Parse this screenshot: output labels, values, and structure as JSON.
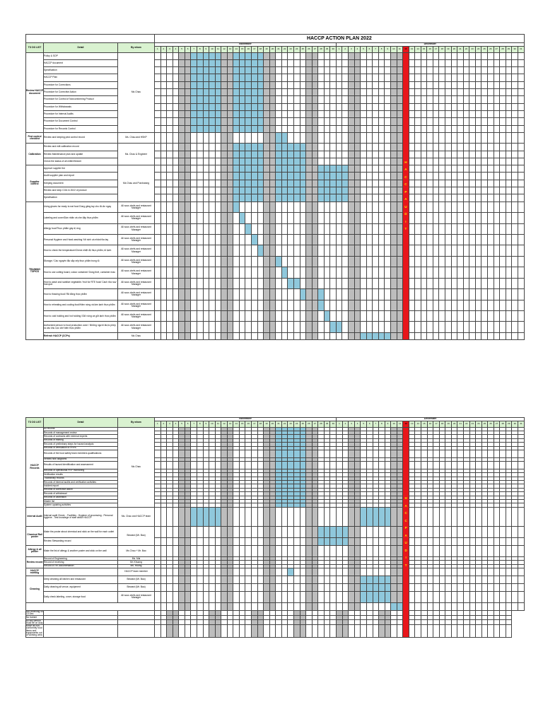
{
  "title": "HACCP ACTION PLAN 2022",
  "headers": {
    "group": "TO DO LIST",
    "detail": "Detail",
    "by_whom": "By whom"
  },
  "months": {
    "november": "November",
    "december": "December"
  },
  "days_nov": [
    1,
    2,
    3,
    4,
    5,
    6,
    7,
    8,
    9,
    10,
    11,
    12,
    13,
    14,
    15,
    16,
    17,
    18,
    19,
    20,
    21,
    22,
    23,
    24,
    25,
    26,
    27,
    28,
    29,
    30
  ],
  "days_dec": [
    1,
    2,
    3,
    4,
    5,
    6,
    7,
    8,
    9,
    10,
    11,
    12,
    13,
    14,
    15,
    16,
    17,
    18,
    19,
    20,
    21,
    22,
    23,
    24,
    25,
    26,
    27,
    28,
    29,
    30,
    31
  ],
  "weekend_days_nov": [
    5,
    6,
    12,
    13,
    19,
    20,
    26,
    27
  ],
  "weekend_days_dec": [
    3,
    4,
    10,
    11
  ],
  "audit_day_dec": 12,
  "audit_text": "HACCP AUDIT",
  "colors": {
    "header_green": "#d9f2d0",
    "weekend_grey": "#bdbdbd",
    "task_blue": "#8fc8dc",
    "audit_red": "#e8161b",
    "audit_text_yellow": "#ffe600"
  },
  "sheet1": {
    "rows": [
      {
        "group": "Review HACCP document",
        "detail": "Policy & SOP",
        "who": "Ms Chau",
        "h": 2
      },
      {
        "group": "",
        "detail": "HACCP document",
        "who": "",
        "h": 2
      },
      {
        "group": "",
        "detail": "Specification",
        "who": "",
        "h": 2
      },
      {
        "group": "",
        "detail": "HACCP Plan",
        "who": "",
        "h": 2
      },
      {
        "group": "",
        "detail": "Procedure for Corrections",
        "who": "",
        "h": 2
      },
      {
        "group": "",
        "detail": "Procedure for Corrective Action",
        "who": "",
        "h": 2
      },
      {
        "group": "",
        "detail": "Procedure for Control of Nonconforming Product",
        "who": "",
        "h": 2
      },
      {
        "group": "",
        "detail": "Procedure for Withdrawals",
        "who": "",
        "h": 2
      },
      {
        "group": "",
        "detail": "Procedure for Internal Audits",
        "who": "",
        "h": 2
      },
      {
        "group": "",
        "detail": "Procedure for Document Control",
        "who": "",
        "h": 2
      },
      {
        "group": "",
        "detail": "Procedure for Records Control",
        "who": "",
        "h": 2
      },
      {
        "group": "Pest control checklist",
        "detail": "Review and keeping pest control record",
        "who": "Ms. Chau and HSKP",
        "h": 3
      },
      {
        "group": "Calibration",
        "detail": "Review and edit calibration record",
        "who": "Ms. Chau & Engineer",
        "h": 2
      },
      {
        "group": "",
        "detail": "Review Maintenance plan and update",
        "who": "",
        "h": 2
      },
      {
        "group": "",
        "detail": "Check the status of all chiller/freezer",
        "who": "",
        "h": 2
      },
      {
        "group": "Supplier control",
        "detail": "Approve supplier list",
        "who": "Ms Chau and Purchasing",
        "h": 2
      },
      {
        "group": "",
        "detail": "Audit supplier plan and report",
        "who": "",
        "h": 2
      },
      {
        "group": "",
        "detail": "Keeping document",
        "who": "",
        "h": 2
      },
      {
        "group": "",
        "detail": "Review and keep COA in 2022 of product",
        "who": "",
        "h": 2
      },
      {
        "group": "",
        "detail": "Specification",
        "who": "",
        "h": 2
      },
      {
        "group": "TRAINING TOPICS",
        "detail": "Using gloves for ready to eat food Dùng găng tay cho đồ ăn ngay",
        "who": "All sous chefs and restaurant Manager",
        "h": 3
      },
      {
        "group": "",
        "detail": "Labeling and cover/Dán nhãn và che đậy thực phẩm",
        "who": "All sous chefs and restaurant Manager",
        "h": 3
      },
      {
        "group": "",
        "detail": "Allergy food/Thực phẩm gây dị ứng",
        "who": "All sous chefs and restaurant Manager",
        "h": 3
      },
      {
        "group": "",
        "detail": "Personal Hygiene and Hand washing /Vệ sinh cá nhân/rửa tay",
        "who": "All sous chefs and restaurant Manager",
        "h": 3
      },
      {
        "group": "",
        "detail": "How to check the temperature/Check nhiệt độ thực phẩm, tủ lạnh",
        "who": "All sous chefs and restaurant Manager",
        "h": 3
      },
      {
        "group": "",
        "detail": "Storage / Các nguyên tắc sắp xếp thực phẩm trong tủ",
        "who": "All sous chefs and restaurant Manager",
        "h": 3
      },
      {
        "group": "",
        "detail": "How to use cutting board, colour container/ Dùng thớt, container màu",
        "who": "All sous chefs and restaurant Manager",
        "h": 3
      },
      {
        "group": "",
        "detail": "How to wash and sanitize vegetable / fruit for RTE food/ Cách rửa rau/ hoa quả",
        "who": "All sous chefs and restaurant Manager",
        "h": 3
      },
      {
        "group": "",
        "detail": "How to thawing food/ Rã đông thực phẩm",
        "who": "All sous chefs and restaurant Manager",
        "h": 3
      },
      {
        "group": "",
        "detail": "How to reheating and cooling food/Hâm nóng và làm lạnh thực phẩm",
        "who": "All sous chefs and restaurant Manager",
        "h": 3
      },
      {
        "group": "",
        "detail": "How to cold holding and hot holding /Giữ nóng và giữ lạnh thực phẩm",
        "who": "All sous chefs and restaurant Manager",
        "h": 3
      },
      {
        "group": "",
        "detail": "Authorized person to food production zone / Những người được phép ra vào khu vực chế biến thực phẩm",
        "who": "All sous chefs and restaurant Manager",
        "h": 3
      },
      {
        "group": "",
        "detail": "Refresh HACCP (CCPs)",
        "who": "Ms Chau",
        "h": 2,
        "bold": true
      }
    ]
  },
  "sheet2": {
    "rows": [
      {
        "group": "HACCP Records",
        "detail": "All records",
        "who": "Ms Chau",
        "h": 1
      },
      {
        "group": "",
        "detail": "Records of management review",
        "who": "",
        "h": 1
      },
      {
        "group": "",
        "detail": "Records of contracts with external experts",
        "who": "",
        "h": 1
      },
      {
        "group": "",
        "detail": "Records of training",
        "who": "",
        "h": 1
      },
      {
        "group": "",
        "detail": "Records of preliminary steps for hazard analysis",
        "who": "",
        "h": 1
      },
      {
        "group": "",
        "detail": "Records of verification of PRPs",
        "who": "",
        "h": 1
      },
      {
        "group": "",
        "detail": "Records of the food safety team members qualifications",
        "who": "",
        "h": 2
      },
      {
        "group": "",
        "detail": "Verified flow diagrams",
        "who": "",
        "h": 1
      },
      {
        "group": "",
        "detail": "Results of hazard identification and assessment",
        "who": "",
        "h": 2
      },
      {
        "group": "",
        "detail": "Records of operational PRP monitoring",
        "who": "",
        "h": 1
      },
      {
        "group": "",
        "detail": "Verification results",
        "who": "",
        "h": 1
      },
      {
        "group": "",
        "detail": "Traceability records",
        "who": "",
        "h": 1
      },
      {
        "group": "",
        "detail": "Records of internal audits and verification activities",
        "who": "",
        "h": 1
      },
      {
        "group": "",
        "detail": "Incident report",
        "who": "",
        "h": 1
      },
      {
        "group": "",
        "detail": "Records of corrective action",
        "who": "",
        "h": 1
      },
      {
        "group": "",
        "detail": "Records of withdrawal",
        "who": "",
        "h": 1
      },
      {
        "group": "",
        "detail": "Records of calibration",
        "who": "",
        "h": 1
      },
      {
        "group": "",
        "detail": "Master list",
        "who": "",
        "h": 1
      },
      {
        "group": "",
        "detail": "System updating activities",
        "who": "",
        "h": 1
      },
      {
        "group": "Internal Audit",
        "detail": "Internal audit Check: - Facilities - Hygiene of processing - Personal hygiene - Test knowlege of staff about HACCP",
        "who": "Ms. Chau and HACCP team",
        "h": 5
      },
      {
        "group": "Chemical Rail poster",
        "detail": "Make the poster about chemical and stick on the wall for each outlet",
        "who": "Steward (Mr. Bao)",
        "h": 3
      },
      {
        "group": "",
        "detail": "Review  Stewarding record",
        "who": "",
        "h": 2
      },
      {
        "group": "Allergy & all poster",
        "detail": "Make the list of allergy & another poster and stick on the wall",
        "who": "Ms Chau + Mr. Bao",
        "h": 3
      },
      {
        "group": "Review record",
        "detail": "Record of Engineering",
        "who": "Ms. Mai",
        "h": 1
      },
      {
        "group": "",
        "detail": "Record of receiving",
        "who": "Mr. Khuong",
        "h": 1
      },
      {
        "group": "",
        "detail": "Record of HR documentation",
        "who": "Ms. Huong",
        "h": 1
      },
      {
        "group": "HACCP meeting",
        "detail": "",
        "who": "HACCP team member",
        "h": 2
      },
      {
        "group": "Cleaning",
        "detail": "Deep cleaning all kitchen and restaurant",
        "who": "Steward (Mr. Bao)",
        "h": 2
      },
      {
        "group": "",
        "detail": "Daily cleaning all venue, equipment",
        "who": "Steward (Mr. Bao)",
        "h": 2
      },
      {
        "group": "",
        "detail": "Daily check labeling, cover, storage food",
        "who": "All sous chefs and restaurant Manager",
        "h": 3
      },
      {
        "group": "Move all unnecessary equipment & all items with chinese labels",
        "detail": "",
        "who": "",
        "h": 2
      },
      {
        "group": "",
        "detail": "Not receiving on 13 Dec",
        "who": "",
        "h": 1
      },
      {
        "group": "",
        "detail": "No trainee",
        "who": "",
        "h": 1
      },
      {
        "group": "",
        "detail": "All key person must be on duty",
        "who": "",
        "h": 1
      },
      {
        "group": "",
        "detail": "Move all non-conformity food items and equipments out of working area",
        "who": "",
        "h": 2
      }
    ]
  }
}
